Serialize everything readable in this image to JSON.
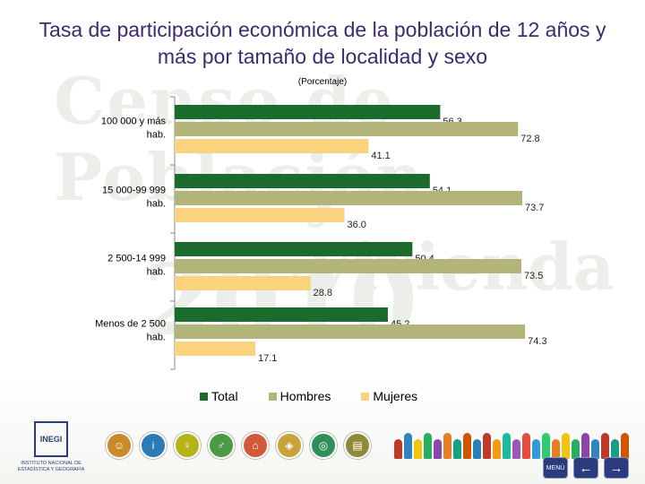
{
  "title": "Tasa de participación económica de la población de 12 años y más por tamaño de localidad y sexo",
  "subtitle": "(Porcentaje)",
  "watermark": {
    "line1": "Censo de Población",
    "line2": "y Vivienda",
    "line3": "2010"
  },
  "colors": {
    "Total": "#1b6b2c",
    "Hombres": "#b3b47a",
    "Mujeres": "#fbd27d"
  },
  "chart_data": {
    "type": "bar",
    "orientation": "horizontal",
    "categories": [
      "100 000 y más hab.",
      "15 000-99 999 hab.",
      "2 500-14 999 hab.",
      "Menos de 2 500 hab."
    ],
    "series": [
      {
        "name": "Total",
        "values": [
          56.3,
          54.1,
          50.4,
          45.2
        ],
        "labels": [
          "56.3",
          "54.1",
          "50.4",
          "45.2"
        ]
      },
      {
        "name": "Hombres",
        "values": [
          72.8,
          73.7,
          73.5,
          74.3
        ],
        "labels": [
          "72.8",
          "73.7",
          "73.5",
          "74.3"
        ]
      },
      {
        "name": "Mujeres",
        "values": [
          41.1,
          36.0,
          28.8,
          17.1
        ],
        "labels": [
          "41.1",
          "36.0",
          "28.8",
          "17.1"
        ]
      }
    ],
    "xlim": [
      0,
      80
    ],
    "legend": "bottom",
    "grid": false
  },
  "footer": {
    "logo_name": "INEGI",
    "logo_caption": "INSTITUTO NACIONAL DE ESTADÍSTICA Y GEOGRAFÍA",
    "menu_label": "MENÚ",
    "nav_icons": [
      {
        "icon": "people-icon",
        "color": "#c98a2a"
      },
      {
        "icon": "info-icon",
        "color": "#2a7bb8"
      },
      {
        "icon": "family-icon",
        "color": "#b5b21c"
      },
      {
        "icon": "group-icon",
        "color": "#4c9b44"
      },
      {
        "icon": "house-icon",
        "color": "#d05a3a"
      },
      {
        "icon": "map-icon",
        "color": "#c9a23a"
      },
      {
        "icon": "globe-icon",
        "color": "#2f8f5a"
      },
      {
        "icon": "book-icon",
        "color": "#8f8a3a"
      }
    ]
  }
}
